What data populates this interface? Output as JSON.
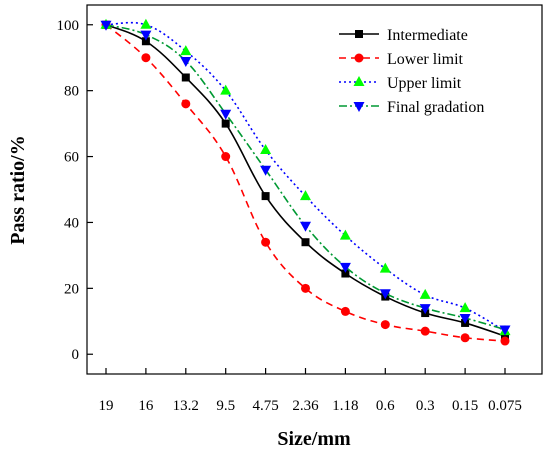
{
  "chart_data": {
    "type": "line",
    "title": "",
    "xlabel": "Size/mm",
    "ylabel": "Pass ratio/%",
    "categories": [
      "19",
      "16",
      "13.2",
      "9.5",
      "4.75",
      "2.36",
      "1.18",
      "0.6",
      "0.3",
      "0.15",
      "0.075"
    ],
    "yticks": [
      "0",
      "20",
      "40",
      "60",
      "80",
      "100"
    ],
    "ylim": [
      -6,
      106
    ],
    "grid": false,
    "legend_position": "top-right",
    "series": [
      {
        "name": "Intermediate",
        "color": "#000000",
        "line_style": "solid",
        "marker": "square",
        "values": [
          100,
          95,
          84,
          70,
          48,
          34,
          24.5,
          17.5,
          12.5,
          9.5,
          5.5
        ]
      },
      {
        "name": "Lower limit",
        "color": "#ff0000",
        "line_style": "dashed",
        "marker": "circle",
        "values": [
          100,
          90,
          76,
          60,
          34,
          20,
          13,
          9,
          7,
          5,
          4
        ]
      },
      {
        "name": "Upper limit",
        "color": "#0000ff",
        "marker_color": "#00ff00",
        "line_style": "dotted",
        "marker": "triangle-up",
        "values": [
          100,
          100,
          92,
          80,
          62,
          48,
          36,
          26,
          18,
          14,
          7
        ]
      },
      {
        "name": "Final gradation",
        "color": "#009933",
        "marker_color": "#0000ff",
        "line_style": "dash-dot",
        "marker": "triangle-down",
        "values": [
          100,
          97,
          89,
          73,
          56,
          39,
          26.5,
          18.5,
          14,
          11,
          7.5
        ]
      }
    ]
  }
}
